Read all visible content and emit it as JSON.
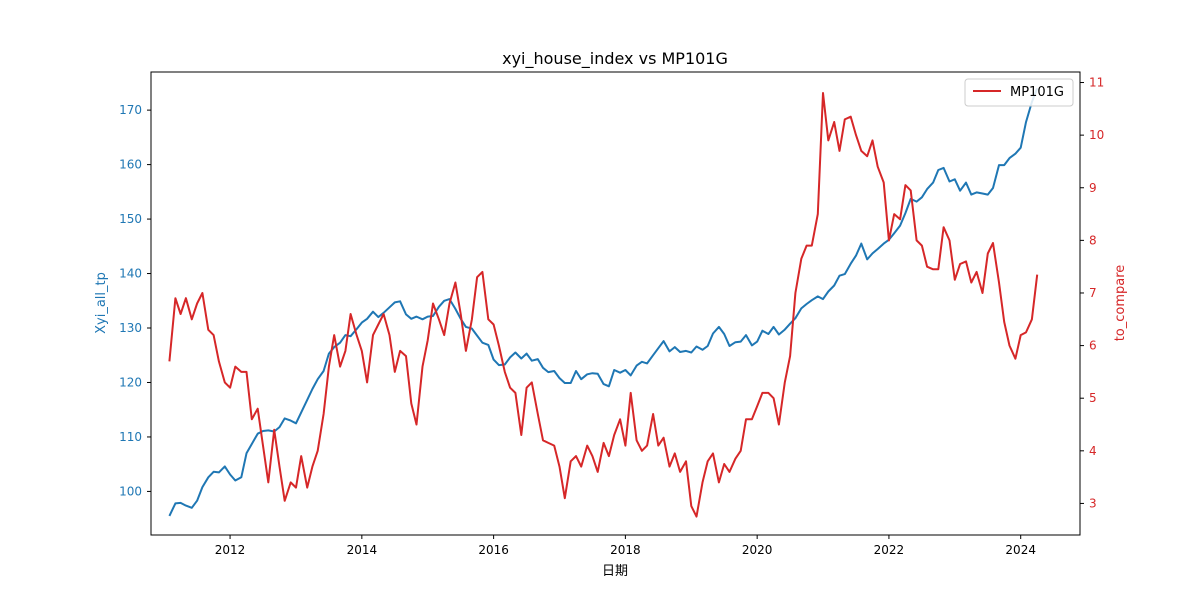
{
  "chart_data": {
    "type": "line",
    "title": "xyi_house_index vs MP101G",
    "xlabel": "日期",
    "ylabel_left": "Xyi_all_tp",
    "ylabel_right": "to_compare",
    "xlim": [
      2010.8,
      2024.9
    ],
    "ylim_left": [
      92,
      177
    ],
    "ylim_right": [
      2.4,
      11.2
    ],
    "x_ticks": [
      2012,
      2014,
      2016,
      2018,
      2020,
      2022,
      2024
    ],
    "y_ticks_left": [
      100,
      110,
      120,
      130,
      140,
      150,
      160,
      170
    ],
    "y_ticks_right": [
      3,
      4,
      5,
      6,
      7,
      8,
      9,
      10,
      11
    ],
    "grid": false,
    "legend": {
      "position": "top-right",
      "entries": [
        "MP101G"
      ]
    },
    "colors": {
      "left": "#1f77b4",
      "right": "#d62728"
    },
    "series": [
      {
        "name": "xyi_house_index",
        "axis": "left",
        "color": "#1f77b4",
        "x": [
          2011.08,
          2011.17,
          2011.25,
          2011.33,
          2011.42,
          2011.5,
          2011.58,
          2011.67,
          2011.75,
          2011.83,
          2011.92,
          2012.0,
          2012.08,
          2012.17,
          2012.25,
          2012.33,
          2012.42,
          2012.5,
          2012.58,
          2012.67,
          2012.75,
          2012.83,
          2012.92,
          2013.0,
          2013.08,
          2013.17,
          2013.25,
          2013.33,
          2013.42,
          2013.5,
          2013.58,
          2013.67,
          2013.75,
          2013.83,
          2013.92,
          2014.0,
          2014.08,
          2014.17,
          2014.25,
          2014.33,
          2014.42,
          2014.5,
          2014.58,
          2014.67,
          2014.75,
          2014.83,
          2014.92,
          2015.0,
          2015.08,
          2015.17,
          2015.25,
          2015.33,
          2015.42,
          2015.5,
          2015.58,
          2015.67,
          2015.75,
          2015.83,
          2015.92,
          2016.0,
          2016.08,
          2016.17,
          2016.25,
          2016.33,
          2016.42,
          2016.5,
          2016.58,
          2016.67,
          2016.75,
          2016.83,
          2016.92,
          2017.0,
          2017.08,
          2017.17,
          2017.25,
          2017.33,
          2017.42,
          2017.5,
          2017.58,
          2017.67,
          2017.75,
          2017.83,
          2017.92,
          2018.0,
          2018.08,
          2018.17,
          2018.25,
          2018.33,
          2018.42,
          2018.5,
          2018.58,
          2018.67,
          2018.75,
          2018.83,
          2018.92,
          2019.0,
          2019.08,
          2019.17,
          2019.25,
          2019.33,
          2019.42,
          2019.5,
          2019.58,
          2019.67,
          2019.75,
          2019.83,
          2019.92,
          2020.0,
          2020.08,
          2020.17,
          2020.25,
          2020.33,
          2020.42,
          2020.5,
          2020.58,
          2020.67,
          2020.75,
          2020.83,
          2020.92,
          2021.0,
          2021.08,
          2021.17,
          2021.25,
          2021.33,
          2021.42,
          2021.5,
          2021.58,
          2021.67,
          2021.75,
          2021.83,
          2021.92,
          2022.0,
          2022.08,
          2022.17,
          2022.25,
          2022.33,
          2022.42,
          2022.5,
          2022.58,
          2022.67,
          2022.75,
          2022.83,
          2022.92,
          2023.0,
          2023.08,
          2023.17,
          2023.25,
          2023.33,
          2023.42,
          2023.5,
          2023.58,
          2023.67,
          2023.75,
          2023.83,
          2023.92,
          2024.0,
          2024.08,
          2024.17,
          2024.25
        ],
        "values": [
          95.5,
          97.8,
          97.9,
          97.4,
          97.0,
          98.3,
          100.8,
          102.6,
          103.6,
          103.5,
          104.6,
          103.1,
          102.0,
          102.6,
          107.0,
          108.7,
          110.6,
          111.1,
          111.2,
          111.0,
          111.8,
          113.4,
          113.0,
          112.5,
          114.5,
          116.8,
          118.8,
          120.6,
          122.1,
          125.3,
          126.5,
          127.3,
          128.7,
          128.5,
          129.8,
          131.0,
          131.7,
          133.0,
          132.0,
          132.8,
          133.8,
          134.7,
          134.9,
          132.5,
          131.7,
          132.1,
          131.6,
          132.1,
          132.2,
          133.9,
          135.0,
          135.3,
          133.5,
          131.7,
          130.2,
          129.9,
          128.6,
          127.3,
          126.9,
          124.2,
          123.2,
          123.3,
          124.6,
          125.5,
          124.4,
          125.3,
          124.0,
          124.3,
          122.7,
          121.9,
          122.1,
          120.8,
          119.9,
          119.9,
          122.1,
          120.6,
          121.5,
          121.7,
          121.6,
          119.7,
          119.3,
          122.3,
          121.8,
          122.3,
          121.3,
          123.1,
          123.8,
          123.5,
          125.0,
          126.3,
          127.6,
          125.7,
          126.5,
          125.6,
          125.8,
          125.5,
          126.6,
          126.0,
          126.7,
          129.0,
          130.2,
          128.9,
          126.7,
          127.4,
          127.5,
          128.7,
          126.8,
          127.5,
          129.5,
          128.9,
          130.2,
          128.8,
          129.7,
          130.8,
          131.8,
          133.6,
          134.4,
          135.1,
          135.8,
          135.3,
          136.7,
          137.8,
          139.6,
          139.9,
          141.8,
          143.3,
          145.5,
          142.6,
          143.7,
          144.5,
          145.5,
          146.2,
          147.4,
          148.8,
          151.1,
          153.7,
          153.2,
          154.0,
          155.5,
          156.7,
          159.0,
          159.4,
          156.9,
          157.3,
          155.2,
          156.7,
          154.5,
          154.9,
          154.7,
          154.5,
          155.7,
          159.9,
          159.9,
          161.2,
          162.0,
          163.1,
          167.8,
          171.5,
          174.0
        ]
      },
      {
        "name": "MP101G",
        "axis": "right",
        "color": "#d62728",
        "x": [
          2011.08,
          2011.17,
          2011.25,
          2011.33,
          2011.42,
          2011.5,
          2011.58,
          2011.67,
          2011.75,
          2011.83,
          2011.92,
          2012.0,
          2012.08,
          2012.17,
          2012.25,
          2012.33,
          2012.42,
          2012.5,
          2012.58,
          2012.67,
          2012.75,
          2012.83,
          2012.92,
          2013.0,
          2013.08,
          2013.17,
          2013.25,
          2013.33,
          2013.42,
          2013.5,
          2013.58,
          2013.67,
          2013.75,
          2013.83,
          2013.92,
          2014.0,
          2014.08,
          2014.17,
          2014.25,
          2014.33,
          2014.42,
          2014.5,
          2014.58,
          2014.67,
          2014.75,
          2014.83,
          2014.92,
          2015.0,
          2015.08,
          2015.17,
          2015.25,
          2015.33,
          2015.42,
          2015.5,
          2015.58,
          2015.67,
          2015.75,
          2015.83,
          2015.92,
          2016.0,
          2016.08,
          2016.17,
          2016.25,
          2016.33,
          2016.42,
          2016.5,
          2016.58,
          2016.67,
          2016.75,
          2016.83,
          2016.92,
          2017.0,
          2017.08,
          2017.17,
          2017.25,
          2017.33,
          2017.42,
          2017.5,
          2017.58,
          2017.67,
          2017.75,
          2017.83,
          2017.92,
          2018.0,
          2018.08,
          2018.17,
          2018.25,
          2018.33,
          2018.42,
          2018.5,
          2018.58,
          2018.67,
          2018.75,
          2018.83,
          2018.92,
          2019.0,
          2019.08,
          2019.17,
          2019.25,
          2019.33,
          2019.42,
          2019.5,
          2019.58,
          2019.67,
          2019.75,
          2019.83,
          2019.92,
          2020.0,
          2020.08,
          2020.17,
          2020.25,
          2020.33,
          2020.42,
          2020.5,
          2020.58,
          2020.67,
          2020.75,
          2020.83,
          2020.92,
          2021.0,
          2021.08,
          2021.17,
          2021.25,
          2021.33,
          2021.42,
          2021.5,
          2021.58,
          2021.67,
          2021.75,
          2021.83,
          2021.92,
          2022.0,
          2022.08,
          2022.17,
          2022.25,
          2022.33,
          2022.42,
          2022.5,
          2022.58,
          2022.67,
          2022.75,
          2022.83,
          2022.92,
          2023.0,
          2023.08,
          2023.17,
          2023.25,
          2023.33,
          2023.42,
          2023.5,
          2023.58,
          2023.67,
          2023.75,
          2023.83,
          2023.92,
          2024.0,
          2024.08,
          2024.17,
          2024.25
        ],
        "values": [
          5.7,
          6.9,
          6.6,
          6.9,
          6.5,
          6.8,
          7.0,
          6.3,
          6.2,
          5.7,
          5.3,
          5.2,
          5.6,
          5.5,
          5.5,
          4.6,
          4.8,
          4.1,
          3.4,
          4.4,
          3.7,
          3.05,
          3.4,
          3.3,
          3.9,
          3.3,
          3.7,
          4.0,
          4.7,
          5.6,
          6.2,
          5.6,
          5.9,
          6.6,
          6.2,
          5.9,
          5.3,
          6.2,
          6.4,
          6.6,
          6.2,
          5.5,
          5.9,
          5.8,
          4.9,
          4.5,
          5.6,
          6.1,
          6.8,
          6.5,
          6.2,
          6.8,
          7.2,
          6.6,
          5.9,
          6.5,
          7.3,
          7.4,
          6.5,
          6.4,
          6.0,
          5.5,
          5.2,
          5.1,
          4.3,
          5.2,
          5.3,
          4.7,
          4.2,
          4.15,
          4.1,
          3.7,
          3.1,
          3.8,
          3.9,
          3.7,
          4.1,
          3.9,
          3.6,
          4.15,
          3.9,
          4.3,
          4.6,
          4.1,
          5.1,
          4.2,
          4.0,
          4.1,
          4.7,
          4.1,
          4.25,
          3.7,
          3.95,
          3.6,
          3.8,
          2.95,
          2.75,
          3.4,
          3.8,
          3.95,
          3.4,
          3.75,
          3.6,
          3.85,
          4.0,
          4.6,
          4.6,
          4.85,
          5.1,
          5.1,
          5.0,
          4.5,
          5.3,
          5.8,
          7.0,
          7.65,
          7.9,
          7.9,
          8.5,
          10.8,
          9.9,
          10.25,
          9.7,
          10.3,
          10.35,
          10.0,
          9.7,
          9.6,
          9.9,
          9.4,
          9.1,
          8.0,
          8.5,
          8.4,
          9.05,
          8.95,
          8.0,
          7.9,
          7.5,
          7.45,
          7.45,
          8.25,
          8.0,
          7.25,
          7.55,
          7.6,
          7.2,
          7.4,
          7.0,
          7.75,
          7.95,
          7.2,
          6.45,
          6.0,
          5.75,
          6.2,
          6.25,
          6.5,
          7.35
        ]
      }
    ]
  }
}
